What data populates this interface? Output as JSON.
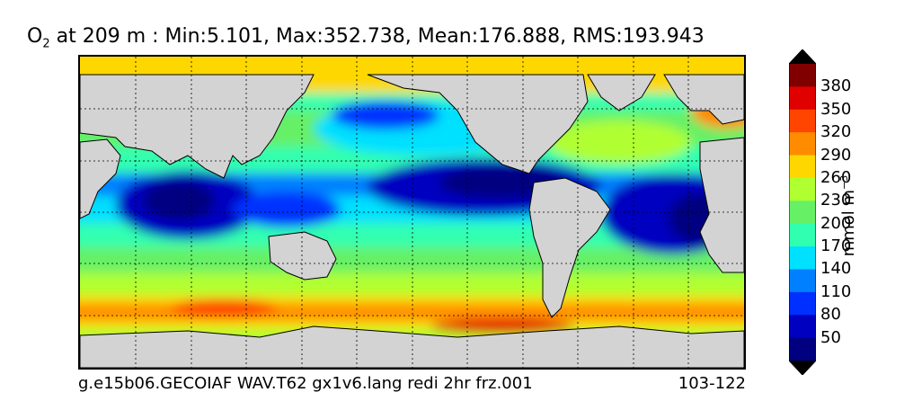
{
  "title": {
    "variable_main": "O",
    "variable_sub": "2",
    "rest": " at 209 m : Min:5.101, Max:352.738, Mean:176.888, RMS:193.943"
  },
  "footer": {
    "case_name": "g.e15b06.GECOIAF WAV.T62 gx1v6.lang redi 2hr frz.001",
    "years": "103-122"
  },
  "colorbar": {
    "unit_main": "mmol m",
    "unit_exp": "−3",
    "labels": [
      "380",
      "350",
      "320",
      "290",
      "260",
      "230",
      "200",
      "170",
      "140",
      "110",
      "80",
      "50"
    ],
    "colors_top_to_bottom": [
      "#800000",
      "#e00000",
      "#ff4500",
      "#ff8c00",
      "#ffd700",
      "#b0ff30",
      "#66f066",
      "#30ffb0",
      "#00e0ff",
      "#0080ff",
      "#0030ff",
      "#0000c0",
      "#000080"
    ],
    "over_color": "#000000",
    "under_color": "#000000"
  },
  "map": {
    "land_color": "#d3d3d3",
    "grid_style": "dashed"
  }
}
